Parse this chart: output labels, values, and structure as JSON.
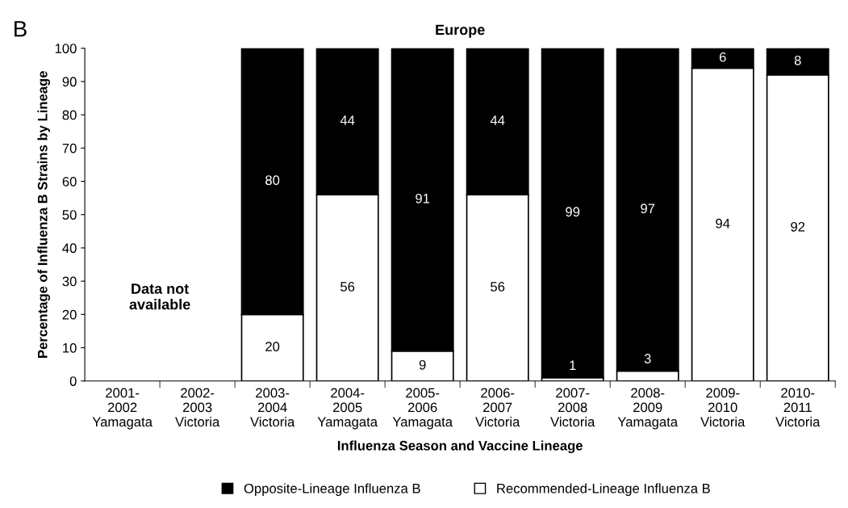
{
  "chart_data": {
    "type": "bar",
    "title": "Europe",
    "xlabel": "Influenza Season and Vaccine Lineage",
    "ylabel": "Percentage of Influenza B Strains by Lineage",
    "categories": [
      "2001-\n2002\nYamagata",
      "2002-\n2003\nVictoria",
      "2003-\n2004\nVictoria",
      "2004-\n2005\nYamagata",
      "2005-\n2006\nYamagata",
      "2006-\n2007\nVictoria",
      "2007-\n2008\nVictoria",
      "2008-\n2009\nYamagata",
      "2009-\n2010\nVictoria",
      "2010-\n2011\nVictoria"
    ],
    "stacked": true,
    "series": [
      {
        "name": "Recommended-Lineage Influenza B",
        "color": "#ffffff",
        "values": [
          null,
          null,
          20,
          56,
          9,
          56,
          1,
          3,
          94,
          92
        ]
      },
      {
        "name": "Opposite-Lineage Influenza B",
        "color": "#000000",
        "values": [
          null,
          null,
          80,
          44,
          91,
          44,
          99,
          97,
          6,
          8
        ]
      }
    ],
    "ylim": [
      0,
      100
    ],
    "yticks": [
      0,
      10,
      20,
      30,
      40,
      50,
      60,
      70,
      80,
      90,
      100
    ],
    "grid": false,
    "legend": "bottom",
    "data_labels": true,
    "annotations": [
      "B",
      "Data not\navailable"
    ]
  }
}
